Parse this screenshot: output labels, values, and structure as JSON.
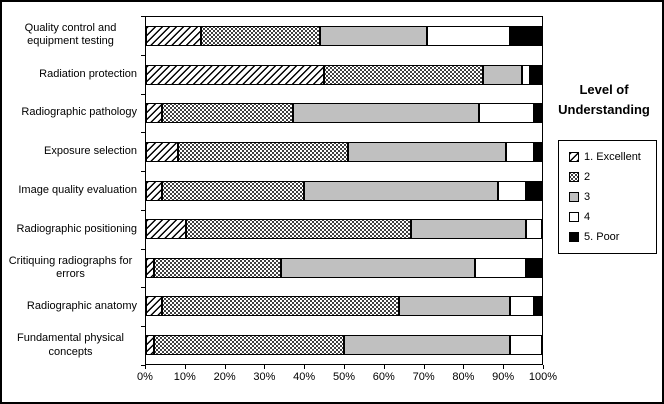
{
  "chart_data": {
    "type": "bar",
    "orientation": "horizontal",
    "stacked": true,
    "units": "percent",
    "legend_title": "Level of Understanding",
    "legend_position": "right",
    "grid": false,
    "xlim": [
      0,
      100
    ],
    "x_ticks": [
      "0%",
      "10%",
      "20%",
      "30%",
      "40%",
      "50%",
      "60%",
      "70%",
      "80%",
      "90%",
      "100%"
    ],
    "categories": [
      "Quality control and equipment testing",
      "Radiation protection",
      "Radiographic pathology",
      "Exposure selection",
      "Image quality evaluation",
      "Radiographic positioning",
      "Critiquing radiographs for errors",
      "Radiographic anatomy",
      "Fundamental physical concepts"
    ],
    "series": [
      {
        "name": "1. Excellent",
        "pattern": "diagonal-hatch",
        "color": "#000000",
        "values": [
          14,
          45,
          4,
          8,
          4,
          10,
          2,
          4,
          2
        ]
      },
      {
        "name": "2",
        "pattern": "dots",
        "color": "#000000",
        "values": [
          30,
          40,
          33,
          43,
          36,
          57,
          32,
          60,
          48
        ]
      },
      {
        "name": "3",
        "pattern": "solid-gray",
        "color": "#c0c0c0",
        "values": [
          27,
          10,
          47,
          40,
          49,
          29,
          49,
          28,
          42
        ]
      },
      {
        "name": "4",
        "pattern": "solid-white",
        "color": "#ffffff",
        "values": [
          21,
          2,
          14,
          7,
          7,
          4,
          13,
          6,
          8
        ]
      },
      {
        "name": "5. Poor",
        "pattern": "solid-black",
        "color": "#000000",
        "values": [
          8,
          3,
          2,
          2,
          4,
          0,
          4,
          2,
          0
        ]
      }
    ]
  }
}
